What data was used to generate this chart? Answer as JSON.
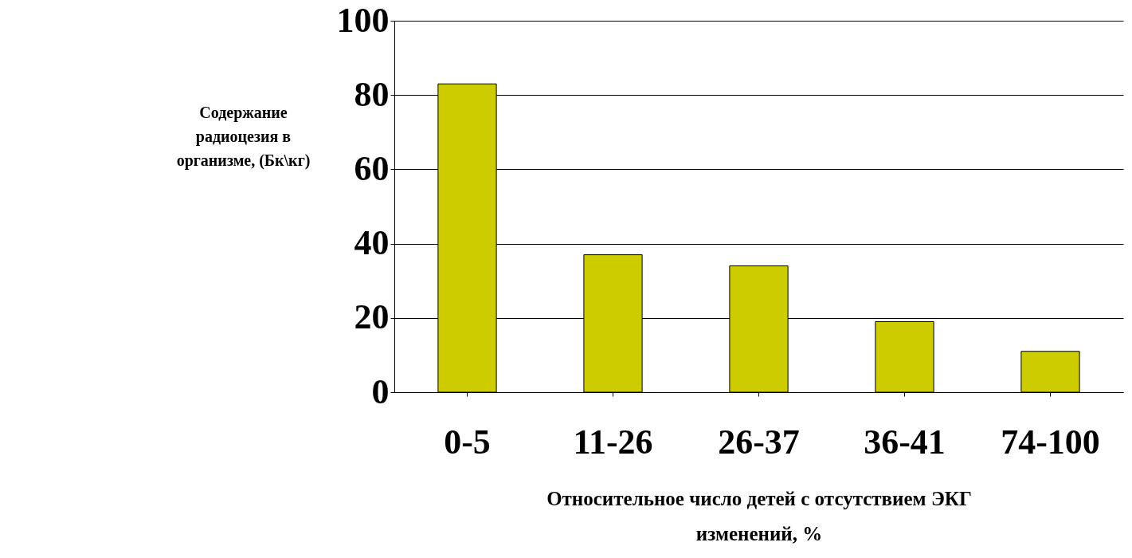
{
  "chart_data": {
    "type": "bar",
    "xlabel": "Относительное число детей с отсутствием ЭКГ изменений, %",
    "ylabel": "Содержание радиоцезия в организме, (Бк\\кг)",
    "categories": [
      "0-5",
      "11-26",
      "26-37",
      "36-41",
      "74-100"
    ],
    "values": [
      83,
      37,
      34,
      19,
      11
    ],
    "color": "#cccc00",
    "ylim": [
      0,
      100
    ],
    "yticks": [
      0,
      20,
      40,
      60,
      80,
      100
    ],
    "grid": "y"
  }
}
